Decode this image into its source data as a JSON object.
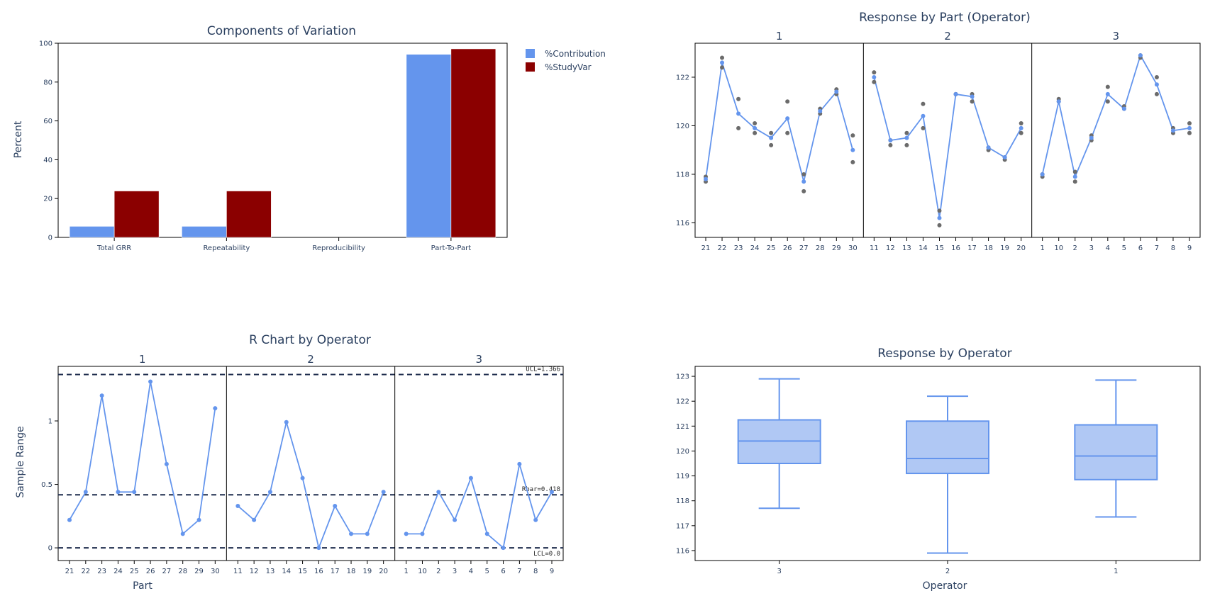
{
  "chart_data": [
    {
      "id": "components",
      "type": "bar",
      "title": "Components of Variation",
      "ylabel": "Percent",
      "ylim": [
        0,
        100
      ],
      "yticks": [
        0,
        20,
        40,
        60,
        80,
        100
      ],
      "categories": [
        "Total GRR",
        "Repeatability",
        "Reproducibility",
        "Part-To-Part"
      ],
      "series": [
        {
          "name": "%Contribution",
          "color": "#6495ED",
          "values": [
            5.7,
            5.7,
            0,
            94.3
          ]
        },
        {
          "name": "%StudyVar",
          "color": "#8B0000",
          "values": [
            23.9,
            23.9,
            0,
            97.1
          ]
        }
      ],
      "legend": "top-right"
    },
    {
      "id": "response-by-part",
      "type": "scatter",
      "title": "Response by Part (Operator)",
      "ylim": [
        115.4,
        123.4
      ],
      "yticks": [
        116,
        118,
        120,
        122
      ],
      "panels": [
        {
          "label": "1",
          "parts": [
            "21",
            "22",
            "23",
            "24",
            "25",
            "26",
            "27",
            "28",
            "29",
            "30"
          ],
          "means": [
            117.8,
            122.6,
            120.5,
            119.9,
            119.5,
            120.3,
            117.7,
            120.6,
            121.4,
            119.0
          ],
          "obs": [
            [
              117.7,
              117.9
            ],
            [
              122.4,
              122.8
            ],
            [
              119.9,
              121.1
            ],
            [
              119.7,
              120.1
            ],
            [
              119.2,
              119.7
            ],
            [
              119.7,
              121.0
            ],
            [
              117.3,
              118.0
            ],
            [
              120.5,
              120.7
            ],
            [
              121.3,
              121.5
            ],
            [
              118.5,
              119.6
            ]
          ]
        },
        {
          "label": "2",
          "parts": [
            "11",
            "12",
            "13",
            "14",
            "15",
            "16",
            "17",
            "18",
            "19",
            "20"
          ],
          "means": [
            122.0,
            119.4,
            119.5,
            120.4,
            116.2,
            121.3,
            121.2,
            119.1,
            118.7,
            119.9
          ],
          "obs": [
            [
              121.8,
              122.2
            ],
            [
              119.2,
              119.4
            ],
            [
              119.2,
              119.7
            ],
            [
              119.9,
              120.9
            ],
            [
              115.9,
              116.5
            ],
            [
              121.3,
              121.3
            ],
            [
              121.0,
              121.3
            ],
            [
              119.0,
              119.1
            ],
            [
              118.6,
              118.7
            ],
            [
              119.7,
              120.1
            ]
          ]
        },
        {
          "label": "3",
          "parts": [
            "1",
            "10",
            "2",
            "3",
            "4",
            "5",
            "6",
            "7",
            "8",
            "9"
          ],
          "means": [
            118.0,
            121.0,
            117.9,
            119.5,
            121.3,
            120.7,
            122.9,
            121.7,
            119.8,
            119.9
          ],
          "obs": [
            [
              117.9,
              118.0
            ],
            [
              121.0,
              121.1
            ],
            [
              117.7,
              118.1
            ],
            [
              119.4,
              119.6
            ],
            [
              121.0,
              121.6
            ],
            [
              120.7,
              120.8
            ],
            [
              122.8,
              122.9
            ],
            [
              121.3,
              122.0
            ],
            [
              119.7,
              119.9
            ],
            [
              119.7,
              120.1
            ]
          ]
        }
      ]
    },
    {
      "id": "r-chart",
      "type": "line",
      "title": "R Chart by Operator",
      "xlabel": "Part",
      "ylabel": "Sample Range",
      "ylim": [
        -0.1,
        1.43
      ],
      "yticks": [
        0,
        0.5,
        1
      ],
      "ucl": 1.366,
      "rbar": 0.418,
      "lcl": 0.0,
      "ucl_label": "UCL=1.366",
      "rbar_label": "Rbar=0.418",
      "lcl_label": "LCL=0.0",
      "panels": [
        {
          "label": "1",
          "parts": [
            "21",
            "22",
            "23",
            "24",
            "25",
            "26",
            "27",
            "28",
            "29",
            "30"
          ],
          "ranges": [
            0.22,
            0.44,
            1.2,
            0.44,
            0.44,
            1.31,
            0.66,
            0.11,
            0.22,
            1.1
          ]
        },
        {
          "label": "2",
          "parts": [
            "11",
            "12",
            "13",
            "14",
            "15",
            "16",
            "17",
            "18",
            "19",
            "20"
          ],
          "ranges": [
            0.33,
            0.22,
            0.44,
            0.99,
            0.55,
            0.0,
            0.33,
            0.11,
            0.11,
            0.44
          ]
        },
        {
          "label": "3",
          "parts": [
            "1",
            "10",
            "2",
            "3",
            "4",
            "5",
            "6",
            "7",
            "8",
            "9"
          ],
          "ranges": [
            0.11,
            0.11,
            0.44,
            0.22,
            0.55,
            0.11,
            0.0,
            0.66,
            0.22,
            0.44
          ]
        }
      ]
    },
    {
      "id": "response-by-operator",
      "type": "box",
      "title": "Response by Operator",
      "xlabel": "Operator",
      "ylim": [
        115.6,
        123.4
      ],
      "yticks": [
        116,
        117,
        118,
        119,
        120,
        121,
        122,
        123
      ],
      "boxes": [
        {
          "label": "3",
          "min": 117.7,
          "q1": 119.5,
          "median": 120.4,
          "q3": 121.25,
          "max": 122.9
        },
        {
          "label": "2",
          "min": 115.9,
          "q1": 119.1,
          "median": 119.7,
          "q3": 121.2,
          "max": 122.2
        },
        {
          "label": "1",
          "min": 117.35,
          "q1": 118.85,
          "median": 119.8,
          "q3": 121.05,
          "max": 122.85
        }
      ]
    }
  ],
  "colors": {
    "line": "#6495ED",
    "point": "#6b6b6b",
    "limit": "#1f2d4d",
    "box_fill": "#b0c8f4",
    "text": "#2a3f5f"
  }
}
